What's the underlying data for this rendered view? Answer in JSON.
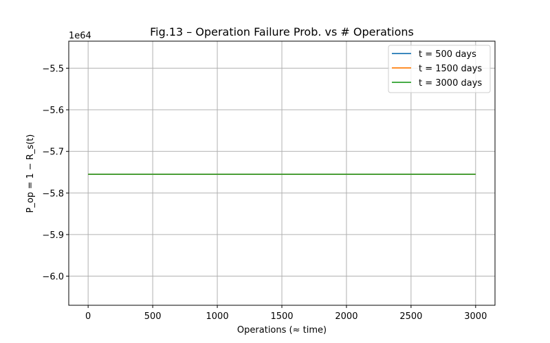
{
  "chart_data": {
    "type": "line",
    "title": "Fig.13 – Operation Failure Prob. vs # Operations",
    "xlabel": "Operations (≈ time)",
    "ylabel": "P_op = 1 − R_s(t)",
    "y_offset_text": "1e64",
    "xlim": [
      -150,
      3150
    ],
    "ylim": [
      -6.07,
      -5.435
    ],
    "x_ticks": [
      0,
      500,
      1000,
      1500,
      2000,
      2500,
      3000
    ],
    "x_tick_labels": [
      "0",
      "500",
      "1000",
      "1500",
      "2000",
      "2500",
      "3000"
    ],
    "y_ticks": [
      -6.0,
      -5.9,
      -5.8,
      -5.7,
      -5.6,
      -5.5
    ],
    "y_tick_labels": [
      "−6.0",
      "−5.9",
      "−5.8",
      "−5.7",
      "−5.6",
      "−5.5"
    ],
    "grid": true,
    "legend_position": "top-right",
    "series": [
      {
        "name": "t = 500 days",
        "color": "#1f77b4",
        "x": [
          0,
          3000
        ],
        "y": [
          -5.755,
          -5.755
        ]
      },
      {
        "name": "t = 1500 days",
        "color": "#ff7f0e",
        "x": [
          0,
          3000
        ],
        "y": [
          -5.755,
          -5.755
        ]
      },
      {
        "name": "t = 3000 days",
        "color": "#2ca02c",
        "x": [
          0,
          3000
        ],
        "y": [
          -5.755,
          -5.755
        ]
      }
    ]
  }
}
